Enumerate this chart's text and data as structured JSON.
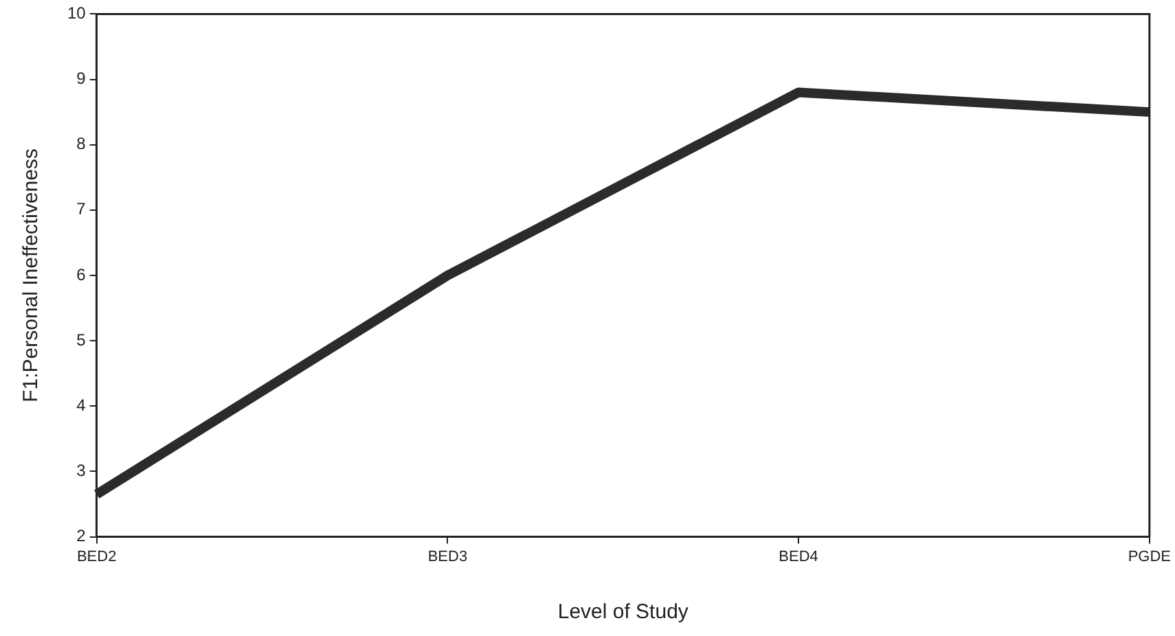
{
  "chart_data": {
    "type": "line",
    "xlabel": "Level of Study",
    "ylabel": "F1:Personal Ineffectiveness",
    "categories": [
      "BED2",
      "BED3",
      "BED4",
      "PGDE"
    ],
    "series": [
      {
        "color": "#2b2b2b",
        "values": [
          2.65,
          6.0,
          8.8,
          8.5
        ]
      }
    ],
    "ylim": [
      2,
      10
    ],
    "yticks": [
      2,
      3,
      4,
      5,
      6,
      7,
      8,
      9,
      10
    ],
    "grid": false,
    "legend": false,
    "marker": "none",
    "line_style": "solid"
  }
}
